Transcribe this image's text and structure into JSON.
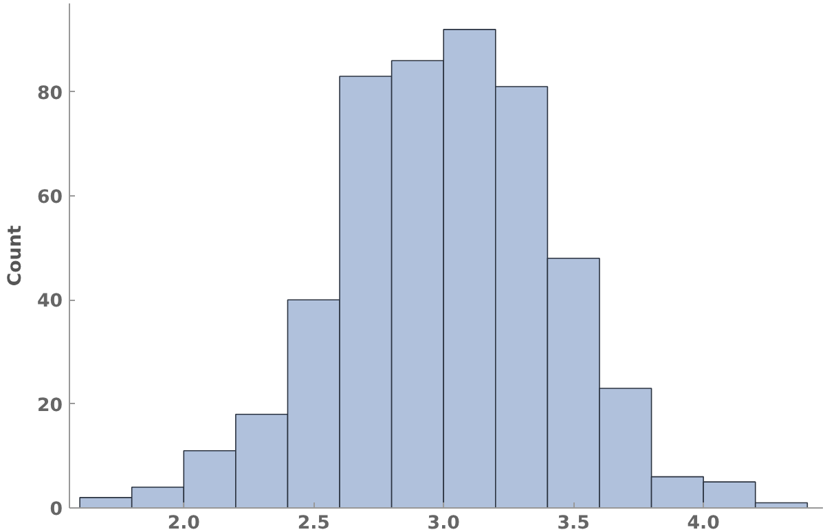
{
  "chart_data": {
    "type": "histogram",
    "ylabel": "Count",
    "color": "#b0c1dc",
    "bins": [
      1.6,
      1.8,
      2.0,
      2.2,
      2.4,
      2.6,
      2.8,
      3.0,
      3.2,
      3.4,
      3.6,
      3.8,
      4.0,
      4.2,
      4.4
    ],
    "values": [
      2,
      4,
      11,
      18,
      40,
      83,
      86,
      92,
      81,
      48,
      23,
      6,
      5,
      1
    ],
    "xlim": [
      1.56,
      4.46
    ],
    "ylim": [
      0,
      97
    ],
    "xticks": [
      {
        "value": 2.0,
        "label": "2.0"
      },
      {
        "value": 2.5,
        "label": "2.5"
      },
      {
        "value": 3.0,
        "label": "3.0"
      },
      {
        "value": 3.5,
        "label": "3.5"
      },
      {
        "value": 4.0,
        "label": "4.0"
      }
    ],
    "yticks": [
      0,
      20,
      40,
      60,
      80
    ],
    "grid": false
  }
}
